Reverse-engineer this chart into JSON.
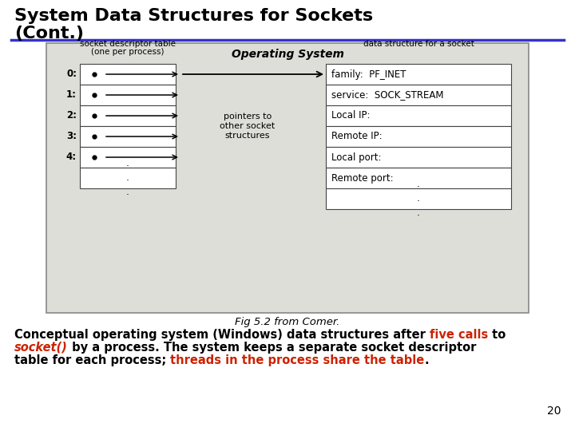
{
  "title_line1": "System Data Structures for Sockets",
  "title_line2": "(Cont.)",
  "title_color": "#000000",
  "title_fontsize": 16,
  "line_color": "#3333cc",
  "bg_color": "#ffffff",
  "diagram_bg": "#deded8",
  "diagram_border": "#888888",
  "os_title": "Operating System",
  "left_table_title1": "socket descriptor table",
  "left_table_title2": "(one per process)",
  "right_table_title": "data structure for a socket",
  "left_rows": [
    "0:",
    "1:",
    "2:",
    "3:",
    "4:"
  ],
  "right_rows": [
    "family:  PF_INET",
    "service:  SOCK_STREAM",
    "Local IP:",
    "Remote IP:",
    "Local port:",
    "Remote port:"
  ],
  "pointer_label": "pointers to\nother socket\nstructures",
  "fig_caption": "Fig 5.2 from Comer.",
  "text_color": "#000000",
  "red_color": "#cc2200",
  "desc_fontsize": 10.5,
  "caption_fontsize": 9.5,
  "page_number": "20"
}
